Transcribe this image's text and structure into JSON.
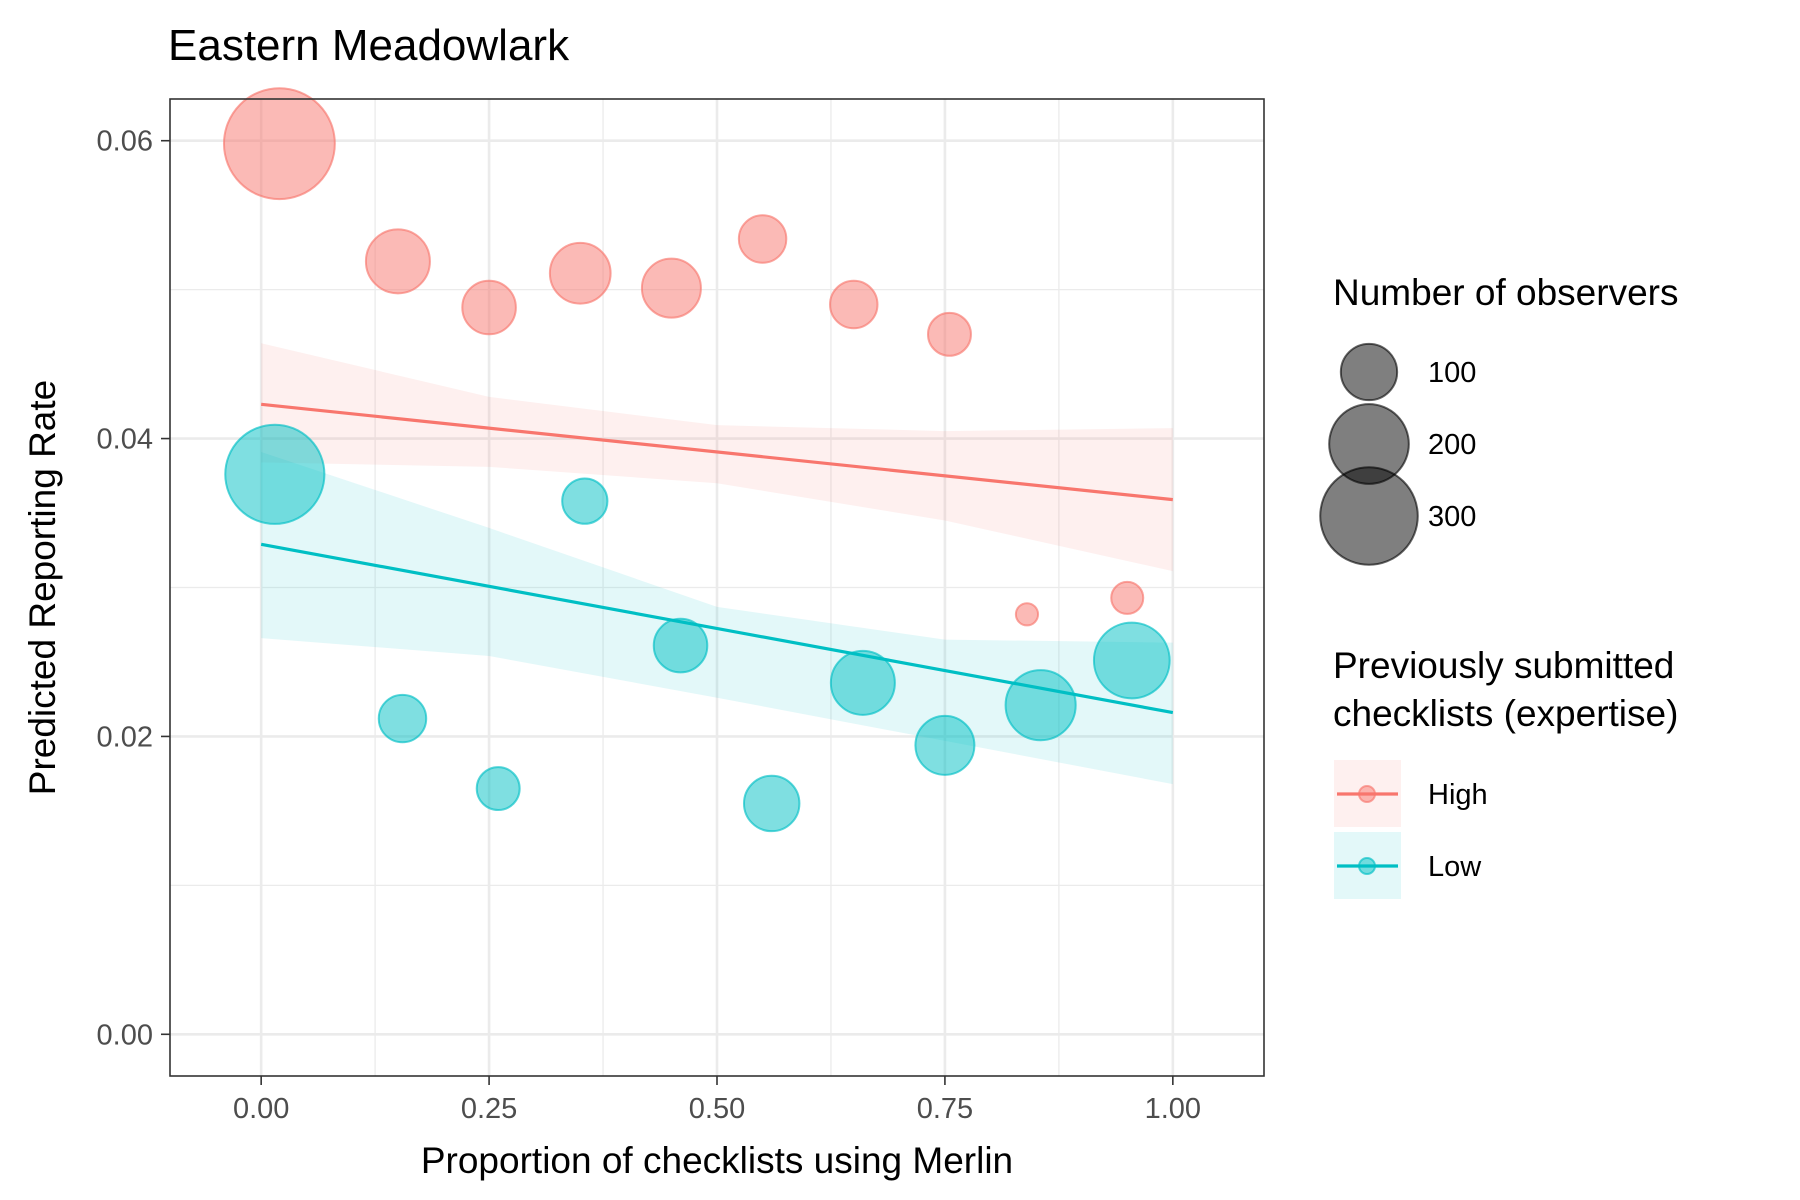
{
  "chart_data": {
    "type": "scatter",
    "title": "Eastern Meadowlark",
    "xlabel": "Proportion of checklists using Merlin",
    "ylabel": "Predicted Reporting Rate",
    "xlim": [
      -0.1,
      1.1
    ],
    "ylim": [
      -0.0028,
      0.0628
    ],
    "x_ticks": [
      0.0,
      0.25,
      0.5,
      0.75,
      1.0
    ],
    "x_tick_labels": [
      "0.00",
      "0.25",
      "0.50",
      "0.75",
      "1.00"
    ],
    "y_ticks": [
      0.0,
      0.02,
      0.04,
      0.06
    ],
    "y_tick_labels": [
      "0.00",
      "0.02",
      "0.04",
      "0.06"
    ],
    "grid": true,
    "legend_position": "right",
    "size_legend": {
      "title": "Number of observers",
      "entries": [
        {
          "label": "100",
          "value": 100
        },
        {
          "label": "200",
          "value": 200
        },
        {
          "label": "300",
          "value": 300
        }
      ]
    },
    "color_legend": {
      "title_lines": [
        "Previously submitted",
        "checklists (expertise)"
      ],
      "entries": [
        {
          "label": "High",
          "color": "#F8766D"
        },
        {
          "label": "Low",
          "color": "#00BFC4"
        }
      ]
    },
    "series": [
      {
        "name": "High",
        "color": "#F8766D",
        "points": [
          {
            "x": 0.02,
            "y": 0.0598,
            "n": 300
          },
          {
            "x": 0.15,
            "y": 0.0519,
            "n": 100
          },
          {
            "x": 0.25,
            "y": 0.0488,
            "n": 70
          },
          {
            "x": 0.35,
            "y": 0.0511,
            "n": 90
          },
          {
            "x": 0.45,
            "y": 0.0501,
            "n": 85
          },
          {
            "x": 0.55,
            "y": 0.0534,
            "n": 55
          },
          {
            "x": 0.65,
            "y": 0.049,
            "n": 55
          },
          {
            "x": 0.755,
            "y": 0.047,
            "n": 45
          },
          {
            "x": 0.84,
            "y": 0.0282,
            "n": 12
          },
          {
            "x": 0.95,
            "y": 0.0293,
            "n": 25
          }
        ],
        "fit": {
          "x": [
            0.0,
            1.0
          ],
          "y": [
            0.0423,
            0.0359
          ]
        },
        "ci": {
          "x": [
            0.0,
            0.25,
            0.5,
            0.75,
            1.0
          ],
          "lower": [
            0.0384,
            0.0381,
            0.037,
            0.0345,
            0.0311
          ],
          "upper": [
            0.0464,
            0.0428,
            0.0409,
            0.0405,
            0.0407
          ]
        }
      },
      {
        "name": "Low",
        "color": "#00BFC4",
        "points": [
          {
            "x": 0.015,
            "y": 0.0376,
            "n": 240
          },
          {
            "x": 0.155,
            "y": 0.0212,
            "n": 55
          },
          {
            "x": 0.26,
            "y": 0.0165,
            "n": 45
          },
          {
            "x": 0.355,
            "y": 0.0358,
            "n": 50
          },
          {
            "x": 0.46,
            "y": 0.0261,
            "n": 70
          },
          {
            "x": 0.56,
            "y": 0.0155,
            "n": 75
          },
          {
            "x": 0.66,
            "y": 0.0236,
            "n": 100
          },
          {
            "x": 0.75,
            "y": 0.0194,
            "n": 85
          },
          {
            "x": 0.855,
            "y": 0.0221,
            "n": 120
          },
          {
            "x": 0.955,
            "y": 0.0251,
            "n": 140
          }
        ],
        "fit": {
          "x": [
            0.0,
            1.0
          ],
          "y": [
            0.0329,
            0.0216
          ]
        },
        "ci": {
          "x": [
            0.0,
            0.25,
            0.5,
            0.75,
            1.0
          ],
          "lower": [
            0.0266,
            0.0254,
            0.0226,
            0.0197,
            0.0168
          ],
          "upper": [
            0.0391,
            0.034,
            0.0287,
            0.0265,
            0.0263
          ]
        }
      }
    ]
  }
}
